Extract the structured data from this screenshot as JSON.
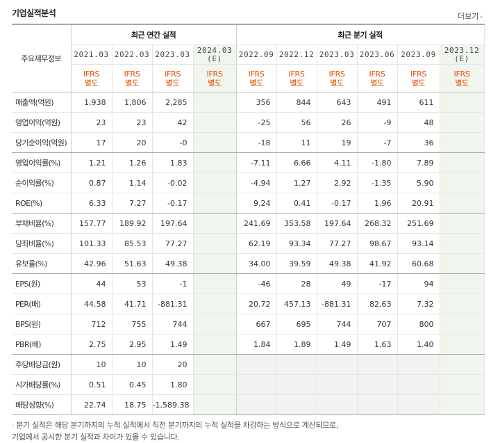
{
  "section": {
    "title": "기업실적분석",
    "more_label": "더보기"
  },
  "header": {
    "label_head": "주요재무정보",
    "annual_group": "최근 연간 실적",
    "quarter_group": "최근 분기 실적",
    "periods": [
      {
        "line1": "2021.03",
        "line2": ""
      },
      {
        "line1": "2022.03",
        "line2": ""
      },
      {
        "line1": "2023.03",
        "line2": ""
      },
      {
        "line1": "2024.03",
        "line2": "(E)"
      },
      {
        "line1": "2022.09",
        "line2": ""
      },
      {
        "line1": "2022.12",
        "line2": ""
      },
      {
        "line1": "2023.03",
        "line2": ""
      },
      {
        "line1": "2023.06",
        "line2": ""
      },
      {
        "line1": "2023.09",
        "line2": ""
      },
      {
        "line1": "2023.12",
        "line2": "(E)"
      }
    ],
    "ifrs": [
      {
        "line1": "IFRS",
        "line2": "별도"
      },
      {
        "line1": "IFRS",
        "line2": "별도"
      },
      {
        "line1": "IFRS",
        "line2": "별도"
      },
      {
        "line1": "IFRS",
        "line2": "별도"
      },
      {
        "line1": "IFRS",
        "line2": "별도"
      },
      {
        "line1": "IFRS",
        "line2": "별도"
      },
      {
        "line1": "IFRS",
        "line2": "별도"
      },
      {
        "line1": "IFRS",
        "line2": "별도"
      },
      {
        "line1": "IFRS",
        "line2": "별도"
      },
      {
        "line1": "IFRS",
        "line2": "별도"
      }
    ]
  },
  "rows": [
    {
      "label": "매출액(억원)",
      "values": [
        "1,938",
        "1,806",
        "2,285",
        "",
        "356",
        "844",
        "643",
        "491",
        "611",
        ""
      ]
    },
    {
      "label": "영업이익(억원)",
      "values": [
        "23",
        "23",
        "42",
        "",
        "-25",
        "56",
        "26",
        "-9",
        "48",
        ""
      ]
    },
    {
      "label": "당기순이익(억원)",
      "values": [
        "17",
        "20",
        "-0",
        "",
        "-18",
        "11",
        "19",
        "-7",
        "36",
        ""
      ]
    },
    {
      "label": "영업이익률(%)",
      "values": [
        "1.21",
        "1.26",
        "1.83",
        "",
        "-7.11",
        "6.66",
        "4.11",
        "-1.80",
        "7.89",
        ""
      ]
    },
    {
      "label": "순이익률(%)",
      "values": [
        "0.87",
        "1.14",
        "-0.02",
        "",
        "-4.94",
        "1.27",
        "2.92",
        "-1.35",
        "5.90",
        ""
      ]
    },
    {
      "label": "ROE(%)",
      "values": [
        "6.33",
        "7.27",
        "-0.17",
        "",
        "9.24",
        "0.41",
        "-0.17",
        "1.96",
        "20.91",
        ""
      ]
    },
    {
      "label": "부채비율(%)",
      "values": [
        "157.77",
        "189.92",
        "197.64",
        "",
        "241.69",
        "353.58",
        "197.64",
        "268.32",
        "251.69",
        ""
      ]
    },
    {
      "label": "당좌비율(%)",
      "values": [
        "101.33",
        "85.53",
        "77.27",
        "",
        "62.19",
        "93.34",
        "77.27",
        "98.67",
        "93.14",
        ""
      ]
    },
    {
      "label": "유보율(%)",
      "values": [
        "42.96",
        "51.63",
        "49.38",
        "",
        "34.00",
        "39.59",
        "49.38",
        "41.92",
        "60.68",
        ""
      ]
    },
    {
      "label": "EPS(원)",
      "values": [
        "44",
        "53",
        "-1",
        "",
        "-46",
        "28",
        "49",
        "-17",
        "94",
        ""
      ]
    },
    {
      "label": "PER(배)",
      "values": [
        "44.58",
        "41.71",
        "-881.31",
        "",
        "20.72",
        "457.13",
        "-881.31",
        "82.63",
        "7.32",
        ""
      ]
    },
    {
      "label": "BPS(원)",
      "values": [
        "712",
        "755",
        "744",
        "",
        "667",
        "695",
        "744",
        "707",
        "800",
        ""
      ]
    },
    {
      "label": "PBR(배)",
      "values": [
        "2.75",
        "2.95",
        "1.49",
        "",
        "1.84",
        "1.89",
        "1.49",
        "1.63",
        "1.40",
        ""
      ]
    },
    {
      "label": "주당배당금(원)",
      "values": [
        "10",
        "10",
        "20",
        "",
        "",
        "",
        "",
        "",
        "",
        ""
      ]
    },
    {
      "label": "시가배당률(%)",
      "values": [
        "0.51",
        "0.45",
        "1.80",
        "",
        "",
        "",
        "",
        "",
        "",
        ""
      ]
    },
    {
      "label": "배당성향(%)",
      "values": [
        "22.74",
        "18.75",
        "-1,589.38",
        "",
        "",
        "",
        "",
        "",
        "",
        ""
      ]
    }
  ],
  "footnote": {
    "line1": "분기 실적은 해당 분기까지의 누적 실적에서 직전 분기까지의 누적 실적을 차감하는 방식으로 계산되므로,",
    "line2": "기업에서 공시한 분기 실적과 차이가 있을 수 있습니다."
  },
  "colors": {
    "negative": "#e00000",
    "ifrs": "#e05000",
    "estimate_bg": "#f0f6ee",
    "blank_bg": "#f2f2f2"
  }
}
